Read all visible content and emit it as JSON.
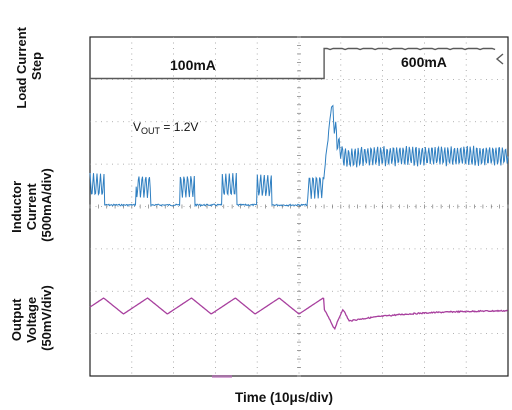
{
  "chart_data": {
    "type": "line",
    "title": "",
    "xlabel": "Time (10μs/div)",
    "x_unit": "μs",
    "x_per_div": 10,
    "divisions": {
      "x": 10,
      "y": 8
    },
    "grid": true,
    "annotations": {
      "step_before": "100mA",
      "step_after": "600mA",
      "vout_main": "V",
      "vout_sub": "OUT",
      "vout_value": " = 1.2V"
    },
    "channels": [
      {
        "id": "load",
        "label_lines": [
          "Load Current",
          "Step"
        ],
        "color": "#5a5a5a",
        "low_level": 100,
        "high_level": 600,
        "unit": "mA",
        "step_time": 56
      },
      {
        "id": "inductor",
        "label_lines": [
          "Inductor",
          "Current",
          "(500mA/div)"
        ],
        "color": "#2f7fc1",
        "per_div": "500mA/div",
        "bursts_before_step": [
          0,
          11,
          21.5,
          31.5,
          40,
          52
        ],
        "burst_duration": 3.5,
        "settled_avg_mA": 700,
        "overshoot_peak_mA": 1000
      },
      {
        "id": "output",
        "label_lines": [
          "Output",
          "Voltage",
          "(50mV/div)"
        ],
        "color": "#a8409e",
        "per_div": "50mV/div",
        "ripple_mV": 25,
        "ripple_period_us": 10.5,
        "undershoot_mV": -45
      }
    ]
  }
}
